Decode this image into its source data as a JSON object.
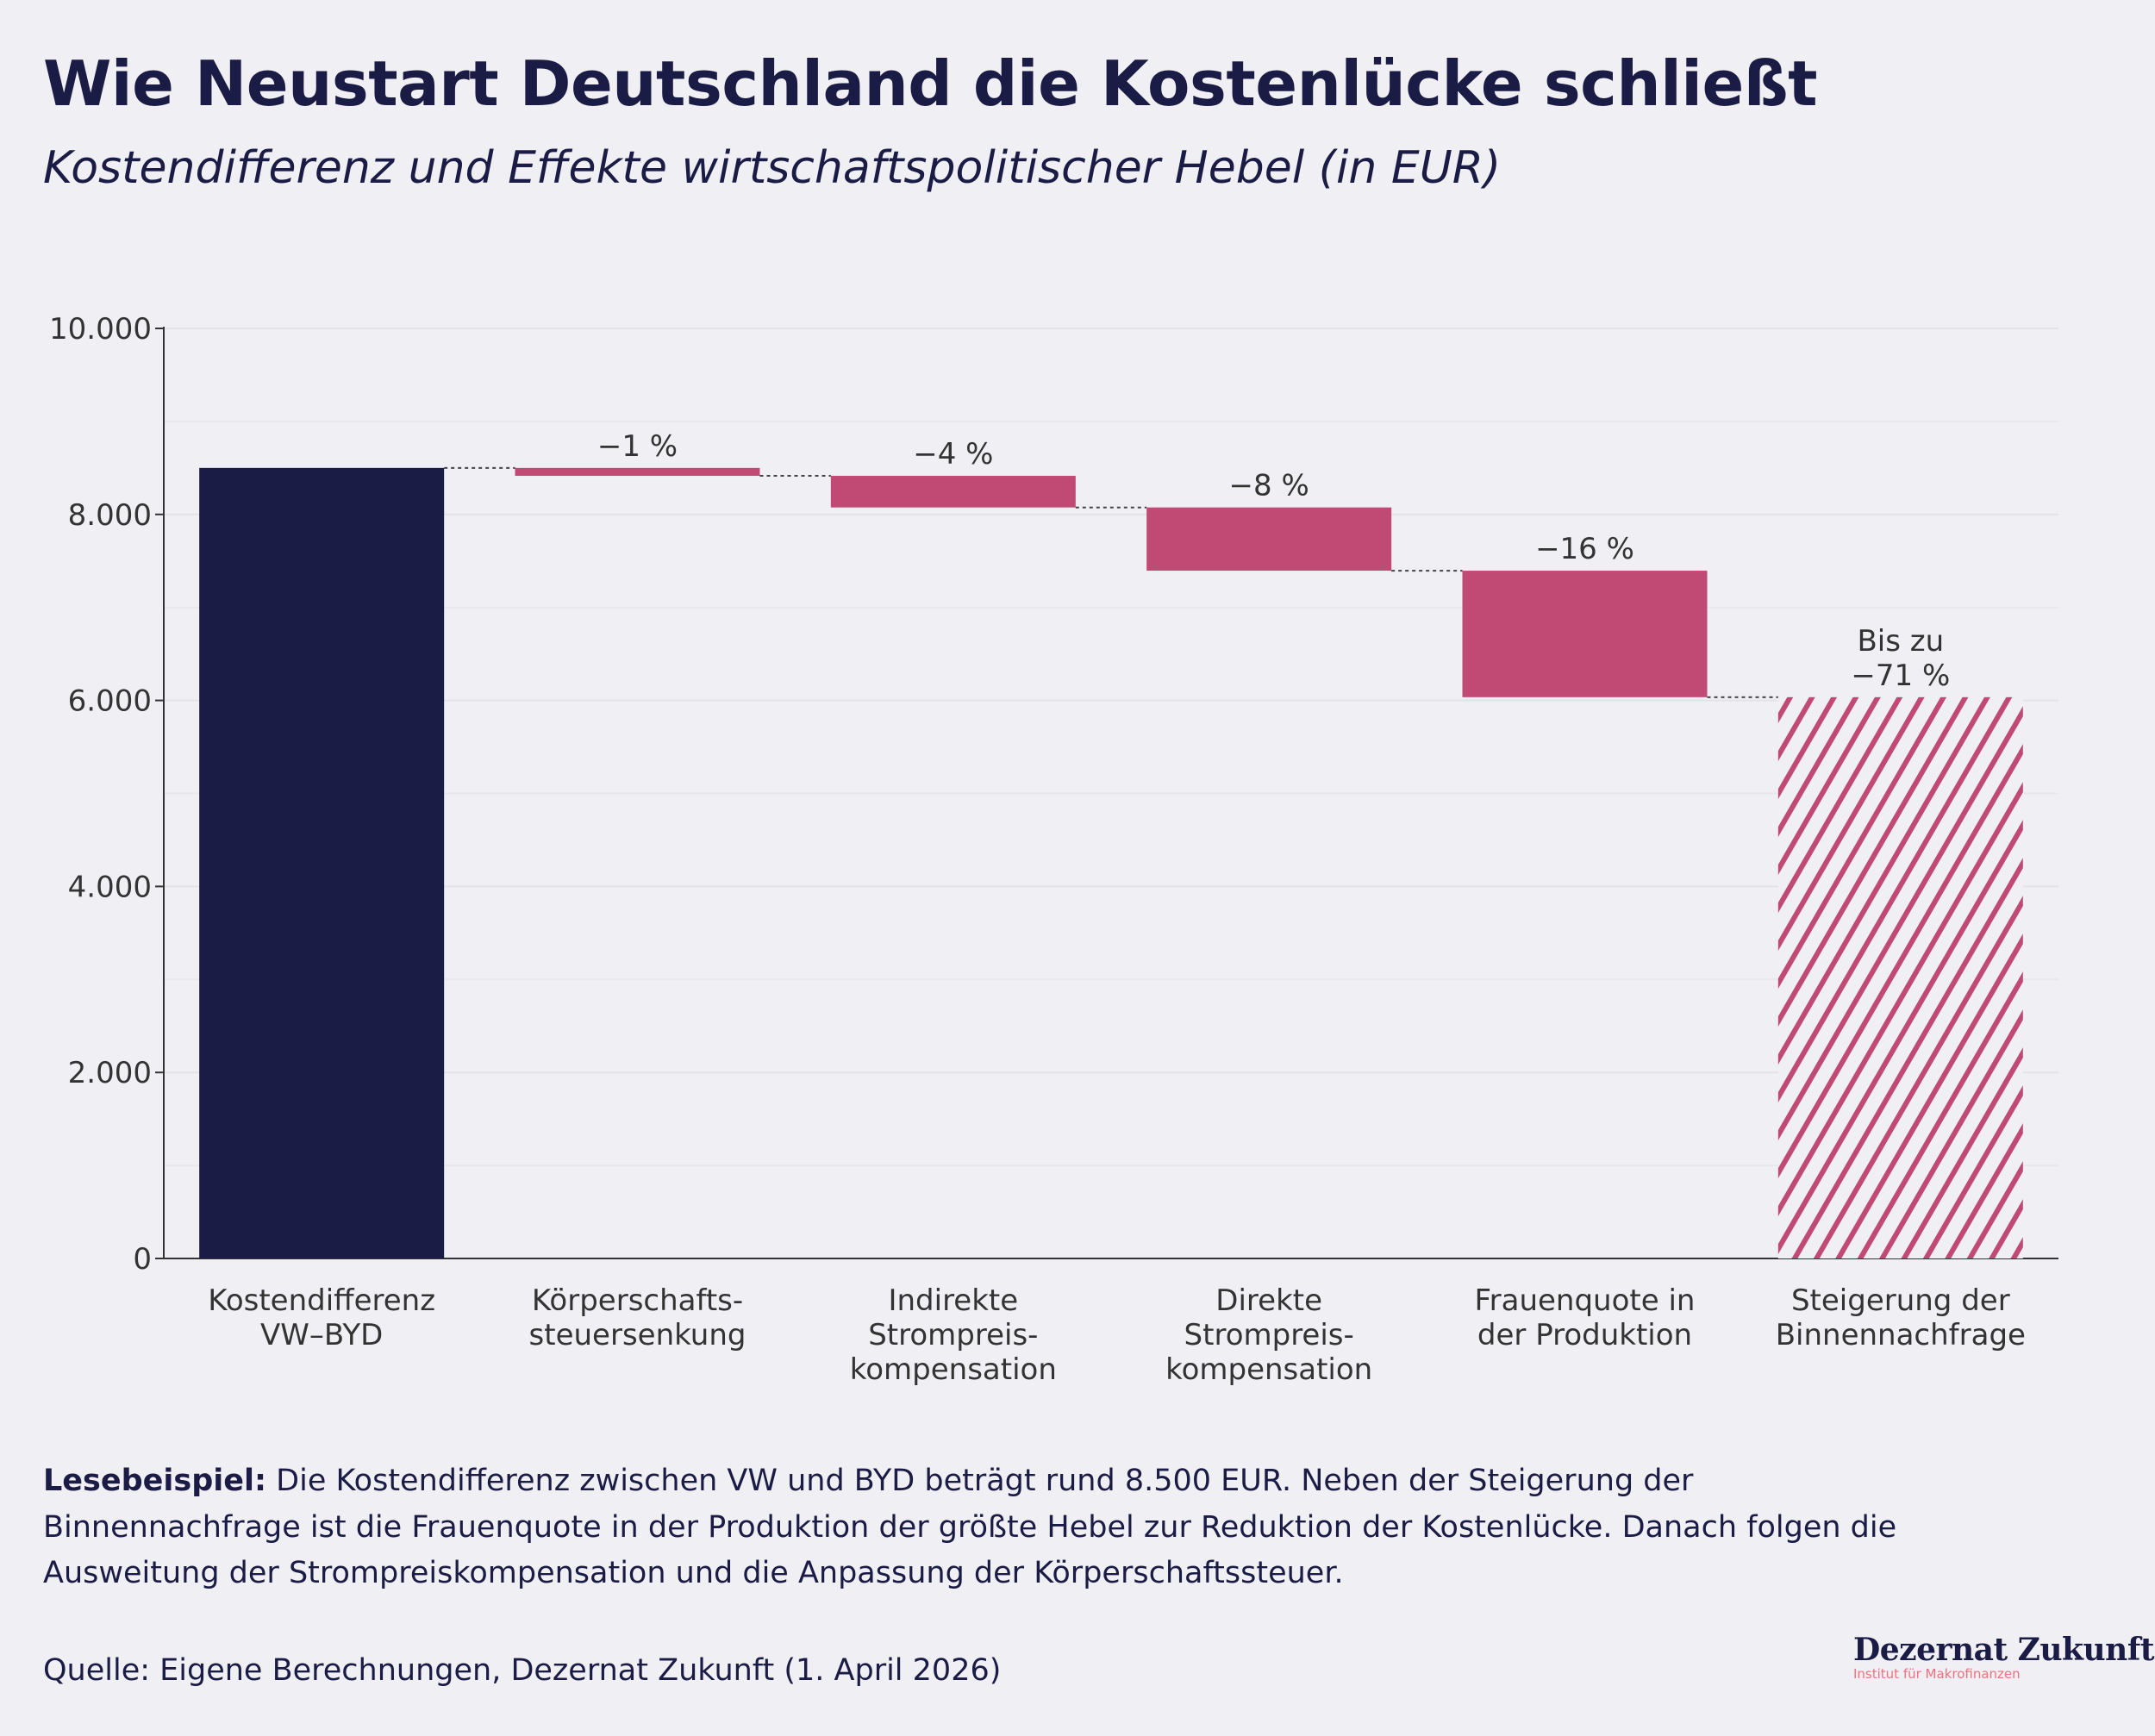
{
  "header": {
    "title": "Wie Neustart Deutschland die Kostenlücke schließt",
    "subtitle": "Kostendifferenz und Effekte wirtschaftspolitischer Hebel (in EUR)"
  },
  "chart_data": {
    "type": "waterfall",
    "title": "Wie Neustart Deutschland die Kostenlücke schließt",
    "subtitle": "Kostendifferenz und Effekte wirtschaftspolitischer Hebel (in EUR)",
    "xlabel": "",
    "ylabel": "",
    "ylim": [
      0,
      10000
    ],
    "yticks": [
      0,
      2000,
      4000,
      6000,
      8000,
      10000
    ],
    "ytick_labels": [
      "0",
      "2.000",
      "4.000",
      "6.000",
      "8.000",
      "10.000"
    ],
    "grid": true,
    "categories": [
      [
        "Kostendifferenz",
        "VW–BYD"
      ],
      [
        "Körperschafts-",
        "steuersenkung"
      ],
      [
        "Indirekte",
        "Strompreis-",
        "kompensation"
      ],
      [
        "Direkte",
        "Strompreis-",
        "kompensation"
      ],
      [
        "Frauenquote in",
        "der Produktion"
      ],
      [
        "Steigerung der",
        "Binnennachfrage"
      ]
    ],
    "values": [
      8500,
      -85,
      -340,
      -680,
      -1360,
      -6035
    ],
    "bar_kinds": [
      "total",
      "delta",
      "delta",
      "delta",
      "delta",
      "hatched"
    ],
    "data_labels": [
      [],
      [
        "−1 %"
      ],
      [
        "−4 %"
      ],
      [
        "−8 %"
      ],
      [
        "−16 %"
      ],
      [
        "Bis zu",
        "−71 %"
      ]
    ],
    "colors": {
      "total": "#1b1c45",
      "delta": "#c04a74",
      "connector": "#444444"
    }
  },
  "footer": {
    "note_label": "Lesebeispiel:",
    "note_text": " Die Kostendifferenz zwischen VW und BYD beträgt rund 8.500 EUR. Neben der Steigerung der Binnennachfrage ist die Frauenquote in der Produktion der größte Hebel zur Reduktion der Kostenlücke. Danach folgen die Ausweitung der Strompreiskompensation und die Anpassung der Körperschaftssteuer.",
    "source": "Quelle: Eigene Berechnungen, Dezernat Zukunft (1. April 2026)",
    "logo_main": "Dezernat Zukunft",
    "logo_sub": "Institut für Makrofinanzen"
  }
}
